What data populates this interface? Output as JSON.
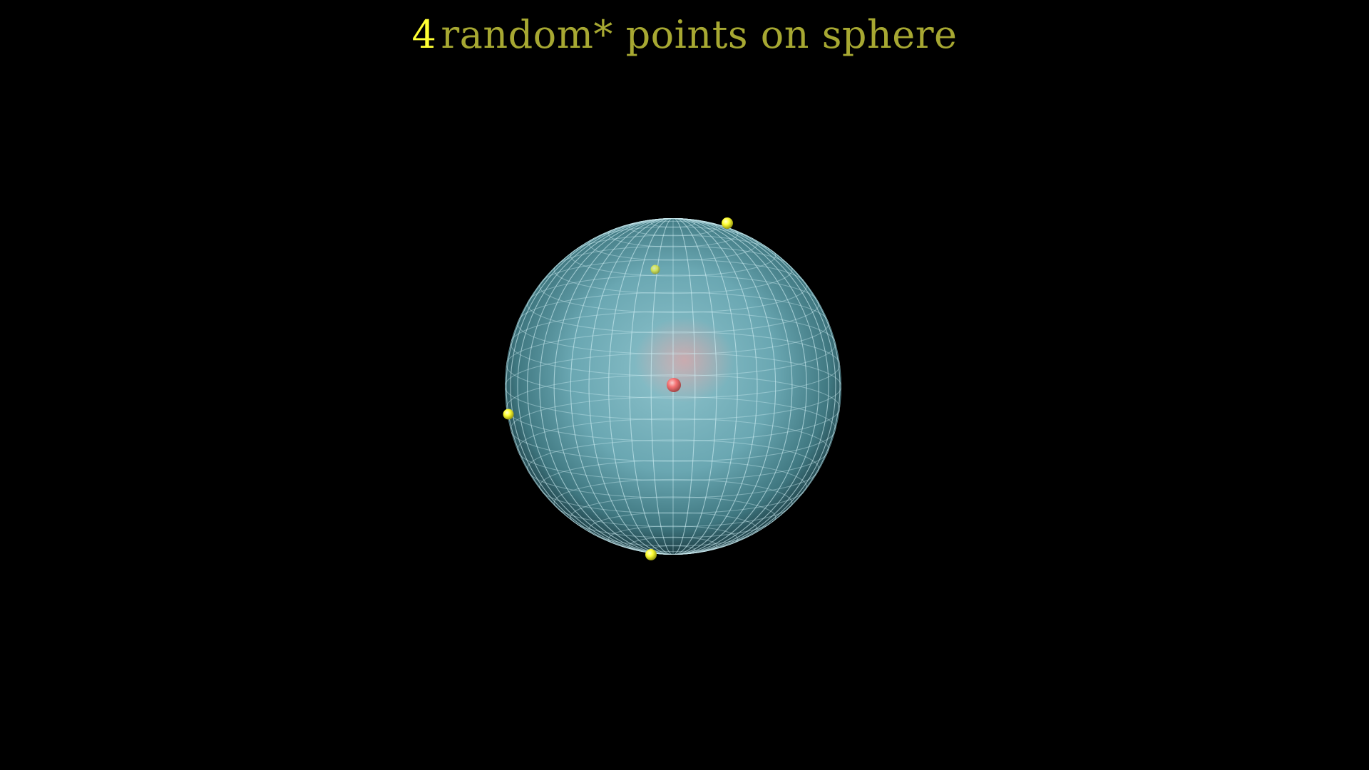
{
  "title": {
    "number": "4",
    "text": "random* points on sphere",
    "number_color": "#ffff33",
    "text_color": "#a7a832"
  },
  "scene": {
    "background": "#000000",
    "sphere": {
      "name": "sphere",
      "fill_color": "#5f9ea8",
      "grid_color": "#cfeef5"
    },
    "center_point": {
      "name": "sphere-center",
      "color": "#ff6a6a"
    },
    "points": [
      {
        "name": "random-point-1",
        "color": "#ffff33",
        "side": "front"
      },
      {
        "name": "random-point-2",
        "color": "#ffff33",
        "side": "back"
      },
      {
        "name": "random-point-3",
        "color": "#ffff33",
        "side": "front"
      },
      {
        "name": "random-point-4",
        "color": "#ffff33",
        "side": "front"
      }
    ]
  }
}
